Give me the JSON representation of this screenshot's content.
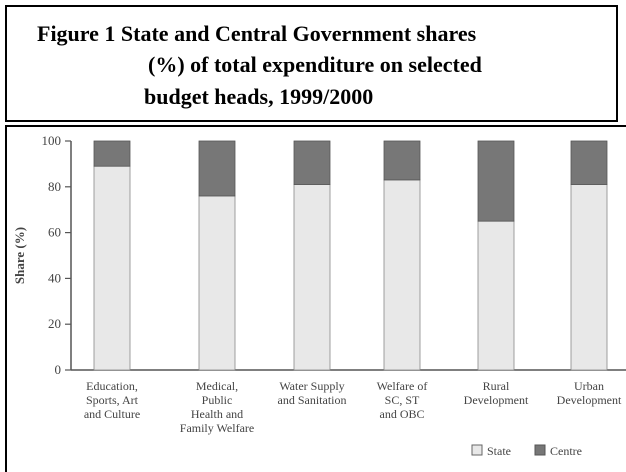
{
  "title": {
    "line1": "Figure 1  State and Central Government shares",
    "line2": "(%) of total expenditure on selected",
    "line3": "budget heads, 1999/2000"
  },
  "colors": {
    "state": "#e8e8e8",
    "centre": "#777777",
    "axis": "#555555"
  },
  "chart_data": {
    "type": "bar",
    "stacked": true,
    "ylabel": "Share (%)",
    "ylim": [
      0,
      100
    ],
    "yticks": [
      0,
      20,
      40,
      60,
      80,
      100
    ],
    "grid": false,
    "legend_position": "bottom-right",
    "categories": [
      [
        "Education,",
        "Sports, Art",
        "and Culture"
      ],
      [
        "Medical,",
        "Public",
        "Health and",
        "Family Welfare"
      ],
      [
        "Water Supply",
        "and Sanitation"
      ],
      [
        "Welfare of",
        "SC, ST",
        "and OBC"
      ],
      [
        "Rural",
        "Development"
      ],
      [
        "Urban",
        "Development"
      ]
    ],
    "series": [
      {
        "name": "State",
        "values": [
          89,
          76,
          81,
          83,
          65,
          81
        ]
      },
      {
        "name": "Centre",
        "values": [
          11,
          24,
          19,
          17,
          35,
          19
        ]
      }
    ]
  }
}
